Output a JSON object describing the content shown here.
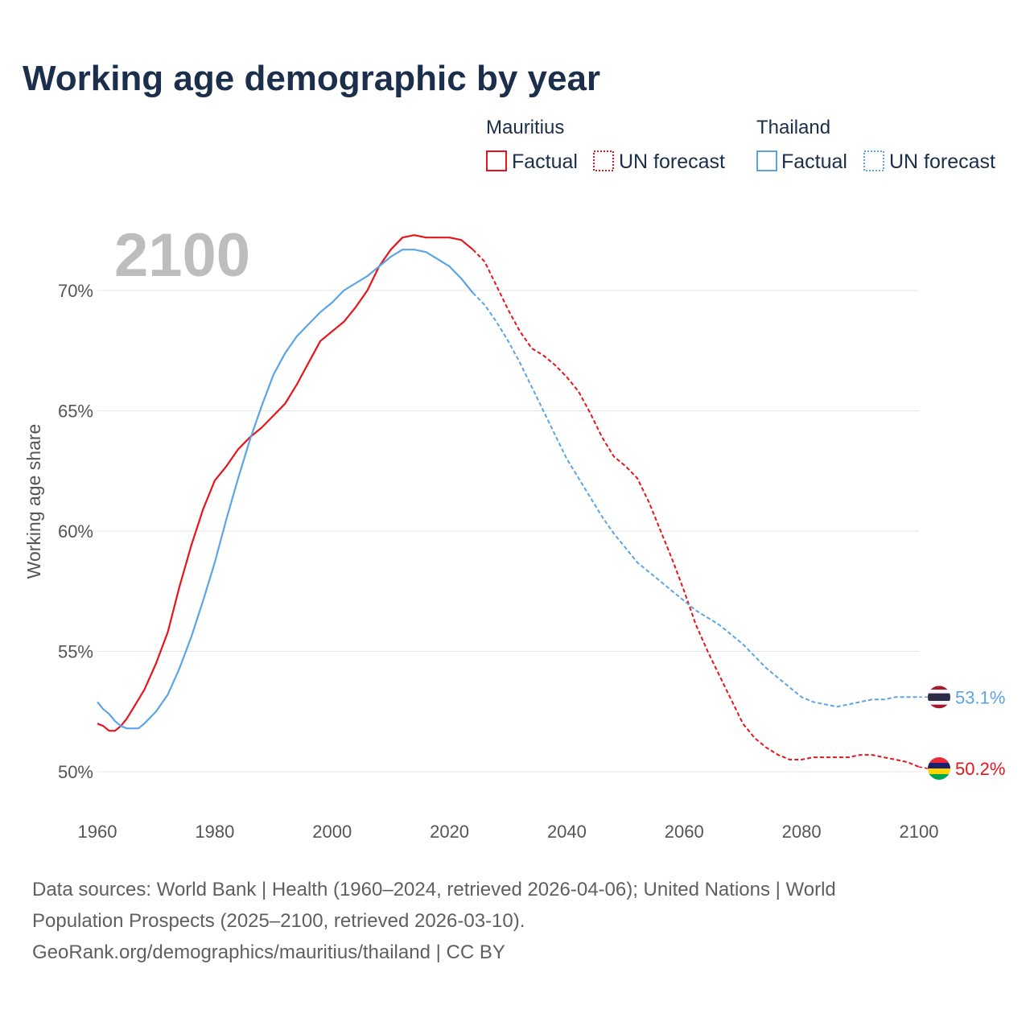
{
  "title": "Working age demographic by year",
  "year_label": "2100",
  "legend": {
    "groups": [
      {
        "name": "Mauritius",
        "color": "#e8141b",
        "factual": "Factual",
        "forecast": "UN forecast"
      },
      {
        "name": "Thailand",
        "color": "#5ba4e6",
        "factual": "Factual",
        "forecast": "UN forecast"
      }
    ]
  },
  "source": {
    "line1": "Data sources: World Bank | Health (1960–2024, retrieved 2026-04-06); United Nations | World",
    "line2": "Population Prospects (2025–2100, retrieved 2026-03-10).",
    "line3": "GeoRank.org/demographics/mauritius/thailand | CC BY"
  },
  "chart_data": {
    "type": "line",
    "title": "Working age demographic by year",
    "xlabel": "",
    "ylabel": "Working age share",
    "xlim": [
      1960,
      2100
    ],
    "ylim": [
      49.5,
      72.5
    ],
    "x_ticks": [
      1960,
      1980,
      2000,
      2020,
      2040,
      2060,
      2080,
      2100
    ],
    "y_ticks": [
      50,
      55,
      60,
      65,
      70
    ],
    "y_tick_labels": [
      "50%",
      "55%",
      "60%",
      "65%",
      "70%"
    ],
    "grid": true,
    "forecast_start": 2024,
    "series": [
      {
        "name": "Mauritius",
        "color": "#e8141b",
        "end_label": "50.2%",
        "flag": [
          "#ea2839",
          "#1a206d",
          "#ffd500",
          "#00a551"
        ],
        "points": [
          [
            1960,
            52.0
          ],
          [
            1961,
            51.9
          ],
          [
            1962,
            51.7
          ],
          [
            1963,
            51.7
          ],
          [
            1964,
            51.9
          ],
          [
            1965,
            52.2
          ],
          [
            1966,
            52.6
          ],
          [
            1968,
            53.4
          ],
          [
            1970,
            54.5
          ],
          [
            1972,
            55.8
          ],
          [
            1974,
            57.7
          ],
          [
            1976,
            59.4
          ],
          [
            1978,
            60.9
          ],
          [
            1980,
            62.1
          ],
          [
            1982,
            62.7
          ],
          [
            1984,
            63.4
          ],
          [
            1986,
            63.9
          ],
          [
            1988,
            64.3
          ],
          [
            1990,
            64.8
          ],
          [
            1992,
            65.3
          ],
          [
            1994,
            66.1
          ],
          [
            1996,
            67.0
          ],
          [
            1998,
            67.9
          ],
          [
            2000,
            68.3
          ],
          [
            2002,
            68.7
          ],
          [
            2004,
            69.3
          ],
          [
            2006,
            70.0
          ],
          [
            2008,
            71.0
          ],
          [
            2010,
            71.7
          ],
          [
            2012,
            72.2
          ],
          [
            2014,
            72.3
          ],
          [
            2016,
            72.2
          ],
          [
            2018,
            72.2
          ],
          [
            2020,
            72.2
          ],
          [
            2022,
            72.1
          ],
          [
            2024,
            71.7
          ],
          [
            2026,
            71.2
          ],
          [
            2028,
            70.2
          ],
          [
            2030,
            69.2
          ],
          [
            2032,
            68.3
          ],
          [
            2034,
            67.6
          ],
          [
            2036,
            67.3
          ],
          [
            2038,
            66.9
          ],
          [
            2040,
            66.4
          ],
          [
            2042,
            65.8
          ],
          [
            2044,
            64.9
          ],
          [
            2046,
            63.9
          ],
          [
            2048,
            63.1
          ],
          [
            2050,
            62.7
          ],
          [
            2052,
            62.2
          ],
          [
            2054,
            61.2
          ],
          [
            2056,
            60.0
          ],
          [
            2058,
            58.8
          ],
          [
            2060,
            57.5
          ],
          [
            2062,
            56.1
          ],
          [
            2064,
            55.0
          ],
          [
            2066,
            54.0
          ],
          [
            2068,
            53.0
          ],
          [
            2070,
            52.0
          ],
          [
            2072,
            51.4
          ],
          [
            2074,
            51.0
          ],
          [
            2076,
            50.7
          ],
          [
            2078,
            50.5
          ],
          [
            2080,
            50.5
          ],
          [
            2082,
            50.6
          ],
          [
            2084,
            50.6
          ],
          [
            2086,
            50.6
          ],
          [
            2088,
            50.6
          ],
          [
            2090,
            50.7
          ],
          [
            2092,
            50.7
          ],
          [
            2094,
            50.6
          ],
          [
            2096,
            50.5
          ],
          [
            2098,
            50.4
          ],
          [
            2100,
            50.2
          ]
        ]
      },
      {
        "name": "Thailand",
        "color": "#5ba4e6",
        "end_label": "53.1%",
        "flag": [
          "#a51931",
          "#f4f5f8",
          "#2d2a4a",
          "#f4f5f8",
          "#a51931"
        ],
        "points": [
          [
            1960,
            52.9
          ],
          [
            1961,
            52.6
          ],
          [
            1962,
            52.4
          ],
          [
            1963,
            52.1
          ],
          [
            1964,
            51.9
          ],
          [
            1965,
            51.8
          ],
          [
            1966,
            51.8
          ],
          [
            1967,
            51.8
          ],
          [
            1968,
            52.0
          ],
          [
            1970,
            52.5
          ],
          [
            1972,
            53.2
          ],
          [
            1974,
            54.3
          ],
          [
            1976,
            55.6
          ],
          [
            1978,
            57.1
          ],
          [
            1980,
            58.7
          ],
          [
            1982,
            60.5
          ],
          [
            1984,
            62.2
          ],
          [
            1986,
            63.8
          ],
          [
            1988,
            65.2
          ],
          [
            1990,
            66.5
          ],
          [
            1992,
            67.4
          ],
          [
            1994,
            68.1
          ],
          [
            1996,
            68.6
          ],
          [
            1998,
            69.1
          ],
          [
            2000,
            69.5
          ],
          [
            2002,
            70.0
          ],
          [
            2004,
            70.3
          ],
          [
            2006,
            70.6
          ],
          [
            2008,
            71.0
          ],
          [
            2010,
            71.4
          ],
          [
            2012,
            71.7
          ],
          [
            2014,
            71.7
          ],
          [
            2016,
            71.6
          ],
          [
            2018,
            71.3
          ],
          [
            2020,
            71.0
          ],
          [
            2022,
            70.5
          ],
          [
            2024,
            69.9
          ],
          [
            2026,
            69.4
          ],
          [
            2028,
            68.7
          ],
          [
            2030,
            67.9
          ],
          [
            2032,
            67.0
          ],
          [
            2034,
            66.0
          ],
          [
            2036,
            65.0
          ],
          [
            2038,
            64.0
          ],
          [
            2040,
            63.0
          ],
          [
            2042,
            62.2
          ],
          [
            2044,
            61.4
          ],
          [
            2046,
            60.6
          ],
          [
            2048,
            59.9
          ],
          [
            2050,
            59.3
          ],
          [
            2052,
            58.7
          ],
          [
            2054,
            58.3
          ],
          [
            2056,
            57.9
          ],
          [
            2058,
            57.5
          ],
          [
            2060,
            57.1
          ],
          [
            2062,
            56.7
          ],
          [
            2064,
            56.4
          ],
          [
            2066,
            56.1
          ],
          [
            2068,
            55.7
          ],
          [
            2070,
            55.3
          ],
          [
            2072,
            54.8
          ],
          [
            2074,
            54.3
          ],
          [
            2076,
            53.9
          ],
          [
            2078,
            53.5
          ],
          [
            2080,
            53.1
          ],
          [
            2082,
            52.9
          ],
          [
            2084,
            52.8
          ],
          [
            2086,
            52.7
          ],
          [
            2088,
            52.8
          ],
          [
            2090,
            52.9
          ],
          [
            2092,
            53.0
          ],
          [
            2094,
            53.0
          ],
          [
            2096,
            53.1
          ],
          [
            2098,
            53.1
          ],
          [
            2100,
            53.1
          ]
        ]
      }
    ]
  }
}
